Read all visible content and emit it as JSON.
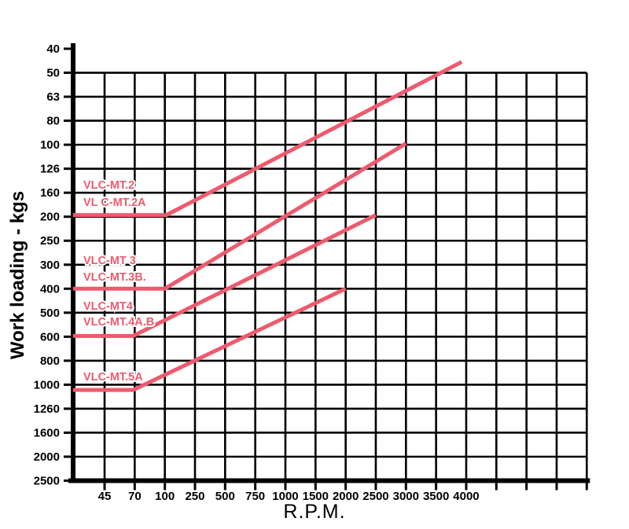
{
  "chart_data": {
    "type": "line",
    "title": "",
    "xlabel": "R.P.M.",
    "ylabel": "Work loading - kgs",
    "grid": true,
    "background": "#ffffff",
    "grid_color": "#000000",
    "line_color": "#ee5a6e",
    "x_axis": {
      "tick_labels": [
        "45",
        "70",
        "100",
        "250",
        "500",
        "750",
        "1000",
        "1500",
        "2000",
        "2500",
        "3000",
        "3500",
        "4000"
      ],
      "extra_unlabeled_ticks": 4,
      "scale_note": "log-like axis, ticks evenly spaced"
    },
    "y_axis": {
      "tick_labels": [
        "40",
        "50",
        "63",
        "80",
        "100",
        "126",
        "160",
        "200",
        "250",
        "300",
        "400",
        "500",
        "600",
        "800",
        "1000",
        "1260",
        "1600",
        "2000",
        "2500"
      ],
      "direction": "values increase downward",
      "scale_note": "log-like axis, ticks evenly spaced; no grid line at 40"
    },
    "series": [
      {
        "name": "VLC-MT.2 / VL C-MT.2A",
        "labels": [
          "VLC-MT.2",
          "VL C-MT.2A"
        ],
        "points": [
          {
            "rpm": 28,
            "kg": 200
          },
          {
            "rpm": 100,
            "kg": 200
          },
          {
            "rpm": 3900,
            "kg": 45
          }
        ],
        "points_idx": [
          [
            -1.05,
            6.93
          ],
          [
            2.05,
            6.93
          ],
          [
            11.85,
            0.55
          ]
        ],
        "label_anchor": {
          "x": 106,
          "baselines": [
            240,
            262
          ]
        }
      },
      {
        "name": "VLC-MT 3 / VLC-MT.3B.",
        "labels": [
          "VLC-MT 3",
          "VLC-MT.3B."
        ],
        "points": [
          {
            "rpm": 28,
            "kg": 400
          },
          {
            "rpm": 100,
            "kg": 400
          },
          {
            "rpm": 3000,
            "kg": 100
          }
        ],
        "points_idx": [
          [
            -1.05,
            10.0
          ],
          [
            2.0,
            10.0
          ],
          [
            10.0,
            3.95
          ]
        ],
        "label_anchor": {
          "x": 106,
          "baselines": [
            336,
            357
          ]
        }
      },
      {
        "name": "VLC-MT4 / VLC-MT.4A.B",
        "labels": [
          "VLC-MT4",
          "VLC-MT.4A.B"
        ],
        "points": [
          {
            "rpm": 28,
            "kg": 600
          },
          {
            "rpm": 70,
            "kg": 600
          },
          {
            "rpm": 2500,
            "kg": 200
          }
        ],
        "points_idx": [
          [
            -1.05,
            11.97
          ],
          [
            0.95,
            11.97
          ],
          [
            9.0,
            6.93
          ]
        ],
        "label_anchor": {
          "x": 106,
          "baselines": [
            394,
            414
          ]
        }
      },
      {
        "name": "VLC-MT.5A",
        "labels": [
          "VLC-MT.5A"
        ],
        "points": [
          {
            "rpm": 28,
            "kg": 1050
          },
          {
            "rpm": 70,
            "kg": 1050
          },
          {
            "rpm": 2000,
            "kg": 400
          }
        ],
        "points_idx": [
          [
            -1.05,
            14.22
          ],
          [
            0.95,
            14.22
          ],
          [
            8.0,
            10.0
          ]
        ],
        "label_anchor": {
          "x": 106,
          "baselines": [
            484
          ]
        }
      }
    ]
  }
}
